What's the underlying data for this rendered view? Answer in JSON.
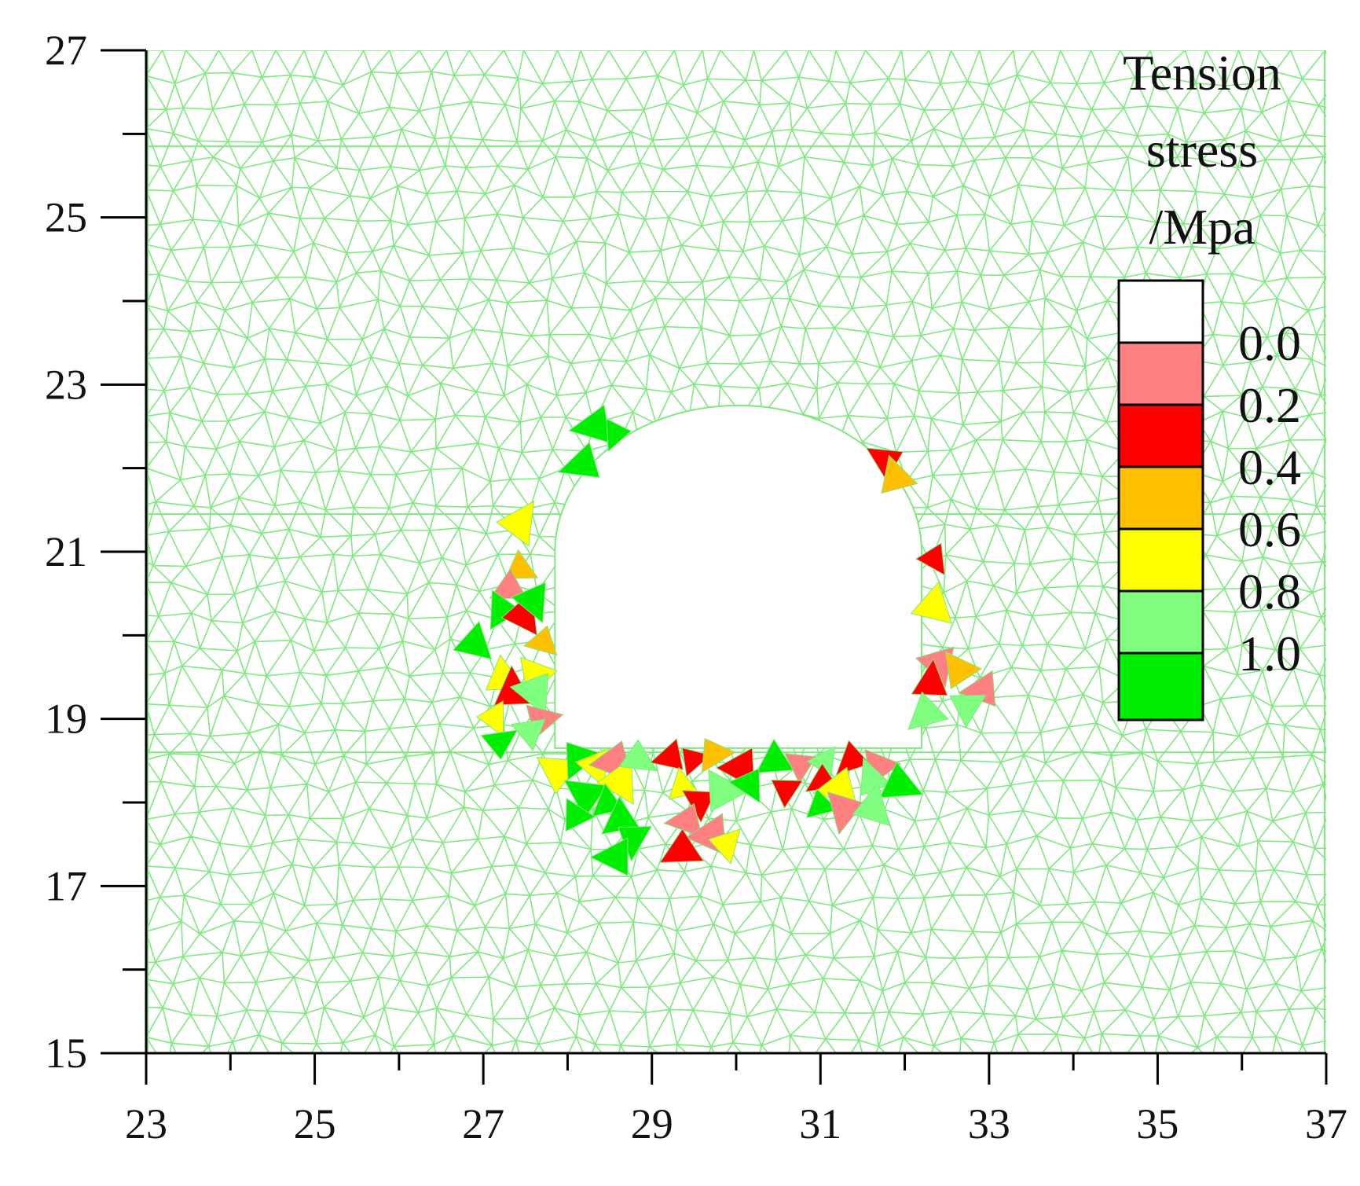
{
  "chart_data": {
    "type": "heatmap",
    "title": "",
    "xlabel": "",
    "ylabel": "",
    "xlim": [
      23,
      37
    ],
    "ylim": [
      15,
      27
    ],
    "x_ticks_major": [
      23,
      25,
      27,
      29,
      31,
      33,
      35,
      37
    ],
    "x_ticks_minor": [
      24,
      26,
      28,
      30,
      32,
      34,
      36
    ],
    "y_ticks_major": [
      15,
      17,
      19,
      21,
      23,
      25,
      27
    ],
    "y_ticks_minor": [
      16,
      18,
      20,
      22,
      24,
      26
    ],
    "x_tick_labels": [
      "23",
      "25",
      "27",
      "29",
      "31",
      "33",
      "35",
      "37"
    ],
    "y_tick_labels": [
      "15",
      "17",
      "19",
      "21",
      "23",
      "25",
      "27"
    ],
    "mesh_color": "#7fe87f",
    "background_color": "#ffffff",
    "tunnel": {
      "x_left": 27.85,
      "x_right": 32.2,
      "floor_y": 18.65,
      "wall_top_y": 21.0,
      "crown_y": 22.75
    },
    "legend": {
      "title_lines": [
        "Tension",
        "stress",
        "/Mpa"
      ],
      "position": "top-right",
      "entries": [
        {
          "label": "0.0",
          "color": "#ffffff"
        },
        {
          "label": "0.2",
          "color": "#ff8080"
        },
        {
          "label": "0.4",
          "color": "#ff0000"
        },
        {
          "label": "0.6",
          "color": "#ffc000"
        },
        {
          "label": "0.8",
          "color": "#ffff00"
        },
        {
          "label": "1.0",
          "color": "#80ff80"
        },
        {
          "label": "",
          "color": "#00ee00"
        }
      ]
    },
    "failed_elements": [
      {
        "x": 28.3,
        "y": 22.5,
        "level": 6
      },
      {
        "x": 28.55,
        "y": 22.4,
        "level": 6
      },
      {
        "x": 28.15,
        "y": 22.05,
        "level": 6
      },
      {
        "x": 27.45,
        "y": 21.35,
        "level": 4
      },
      {
        "x": 27.45,
        "y": 20.8,
        "level": 3
      },
      {
        "x": 27.3,
        "y": 20.55,
        "level": 1
      },
      {
        "x": 27.2,
        "y": 20.3,
        "level": 6
      },
      {
        "x": 27.5,
        "y": 20.25,
        "level": 2
      },
      {
        "x": 27.6,
        "y": 20.4,
        "level": 6
      },
      {
        "x": 26.9,
        "y": 19.9,
        "level": 6
      },
      {
        "x": 27.7,
        "y": 19.9,
        "level": 3
      },
      {
        "x": 27.25,
        "y": 19.5,
        "level": 4
      },
      {
        "x": 27.6,
        "y": 19.5,
        "level": 4
      },
      {
        "x": 27.35,
        "y": 19.35,
        "level": 2
      },
      {
        "x": 27.6,
        "y": 19.3,
        "level": 5
      },
      {
        "x": 27.15,
        "y": 19.0,
        "level": 4
      },
      {
        "x": 27.7,
        "y": 19.0,
        "level": 1
      },
      {
        "x": 27.2,
        "y": 18.75,
        "level": 6
      },
      {
        "x": 27.55,
        "y": 18.85,
        "level": 5
      },
      {
        "x": 31.75,
        "y": 22.1,
        "level": 2
      },
      {
        "x": 31.9,
        "y": 21.9,
        "level": 3
      },
      {
        "x": 32.35,
        "y": 20.9,
        "level": 2
      },
      {
        "x": 32.35,
        "y": 20.35,
        "level": 4
      },
      {
        "x": 32.4,
        "y": 19.65,
        "level": 1
      },
      {
        "x": 32.65,
        "y": 19.6,
        "level": 3
      },
      {
        "x": 32.3,
        "y": 19.45,
        "level": 2
      },
      {
        "x": 32.9,
        "y": 19.35,
        "level": 1
      },
      {
        "x": 32.75,
        "y": 19.15,
        "level": 5
      },
      {
        "x": 32.25,
        "y": 19.05,
        "level": 5
      },
      {
        "x": 27.9,
        "y": 18.4,
        "level": 4
      },
      {
        "x": 28.15,
        "y": 18.5,
        "level": 6
      },
      {
        "x": 28.35,
        "y": 18.45,
        "level": 4
      },
      {
        "x": 28.55,
        "y": 18.45,
        "level": 1
      },
      {
        "x": 28.65,
        "y": 18.25,
        "level": 4
      },
      {
        "x": 28.85,
        "y": 18.5,
        "level": 5
      },
      {
        "x": 29.2,
        "y": 18.55,
        "level": 2
      },
      {
        "x": 29.5,
        "y": 18.5,
        "level": 2
      },
      {
        "x": 29.75,
        "y": 18.55,
        "level": 3
      },
      {
        "x": 30.05,
        "y": 18.4,
        "level": 2
      },
      {
        "x": 30.45,
        "y": 18.5,
        "level": 6
      },
      {
        "x": 30.75,
        "y": 18.45,
        "level": 1
      },
      {
        "x": 31.05,
        "y": 18.5,
        "level": 5
      },
      {
        "x": 31.35,
        "y": 18.5,
        "level": 2
      },
      {
        "x": 31.7,
        "y": 18.45,
        "level": 1
      },
      {
        "x": 28.2,
        "y": 18.1,
        "level": 6
      },
      {
        "x": 28.45,
        "y": 18.0,
        "level": 6
      },
      {
        "x": 28.1,
        "y": 17.85,
        "level": 6
      },
      {
        "x": 28.6,
        "y": 17.8,
        "level": 6
      },
      {
        "x": 29.35,
        "y": 18.2,
        "level": 4
      },
      {
        "x": 29.55,
        "y": 18.0,
        "level": 2
      },
      {
        "x": 29.85,
        "y": 18.15,
        "level": 5
      },
      {
        "x": 30.15,
        "y": 18.2,
        "level": 6
      },
      {
        "x": 30.6,
        "y": 18.15,
        "level": 2
      },
      {
        "x": 31.0,
        "y": 18.25,
        "level": 2
      },
      {
        "x": 31.2,
        "y": 18.15,
        "level": 4
      },
      {
        "x": 31.6,
        "y": 18.3,
        "level": 5
      },
      {
        "x": 31.95,
        "y": 18.2,
        "level": 6
      },
      {
        "x": 31.0,
        "y": 17.95,
        "level": 6
      },
      {
        "x": 31.25,
        "y": 17.9,
        "level": 1
      },
      {
        "x": 31.65,
        "y": 17.95,
        "level": 5
      },
      {
        "x": 29.4,
        "y": 17.75,
        "level": 1
      },
      {
        "x": 29.7,
        "y": 17.6,
        "level": 1
      },
      {
        "x": 29.9,
        "y": 17.5,
        "level": 4
      },
      {
        "x": 28.8,
        "y": 17.55,
        "level": 6
      },
      {
        "x": 28.55,
        "y": 17.35,
        "level": 6
      },
      {
        "x": 29.35,
        "y": 17.4,
        "level": 2
      }
    ]
  }
}
